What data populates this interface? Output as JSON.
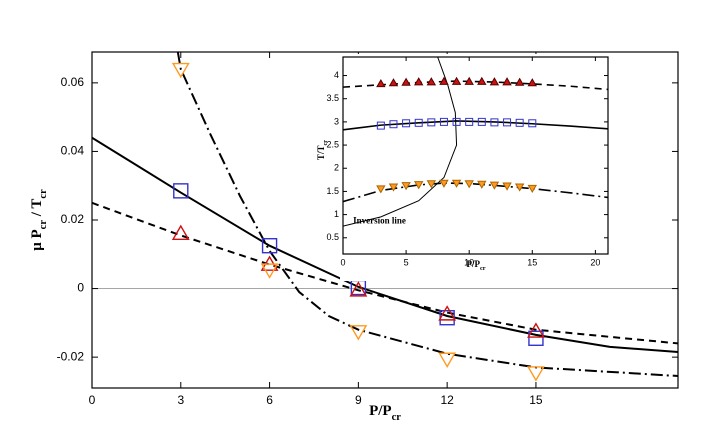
{
  "chart_data": [
    {
      "type": "line",
      "xlabel": [
        {
          "text": "P/P"
        },
        {
          "text": "cr",
          "sub": true
        }
      ],
      "ylabel": [
        {
          "text": "μ P"
        },
        {
          "text": "cr",
          "sub": true
        },
        {
          "text": " / T"
        },
        {
          "text": "cr",
          "sub": true
        }
      ],
      "xlim": [
        0,
        19.8
      ],
      "ylim": [
        -0.029,
        0.069
      ],
      "xticks": [
        0,
        3,
        6,
        9,
        12,
        15
      ],
      "yticks": [
        -0.02,
        0,
        0.02,
        0.04,
        0.06
      ],
      "zero_line": true,
      "series": [
        {
          "style": "solid",
          "color": "#000000",
          "x": [
            0,
            3,
            6,
            9,
            12,
            15,
            17.5,
            19.8
          ],
          "values": [
            0.044,
            0.028,
            0.0125,
            0.0005,
            -0.008,
            -0.0135,
            -0.017,
            -0.0185
          ]
        },
        {
          "style": "dashed",
          "color": "#000000",
          "x": [
            0,
            3,
            6,
            9,
            12,
            15,
            19.8
          ],
          "values": [
            0.025,
            0.0155,
            0.007,
            -0.0005,
            -0.007,
            -0.012,
            -0.016
          ]
        },
        {
          "style": "dashdot",
          "color": "#000000",
          "x": [
            2.9,
            3,
            4,
            5,
            6,
            7,
            8,
            9,
            12,
            15,
            19.8
          ],
          "values": [
            0.069,
            0.064,
            0.045,
            0.027,
            0.011,
            -0.001,
            -0.008,
            -0.012,
            -0.019,
            -0.023,
            -0.0255
          ]
        },
        {
          "marker": "square",
          "color": "#3333cc",
          "x": [
            3,
            6,
            9,
            12,
            15
          ],
          "values": [
            0.0285,
            0.0125,
            0.0003,
            -0.0085,
            -0.0145
          ]
        },
        {
          "marker": "triangle-up",
          "color": "#cc1111",
          "x": [
            3,
            6,
            9,
            12,
            15
          ],
          "values": [
            0.016,
            0.007,
            -0.0005,
            -0.0075,
            -0.0125
          ]
        },
        {
          "marker": "triangle-down",
          "color": "#ff9922",
          "x": [
            3,
            6,
            9,
            12,
            15
          ],
          "values": [
            0.064,
            0.0055,
            -0.0125,
            -0.0205,
            -0.0245
          ]
        }
      ]
    },
    {
      "type": "line",
      "xlabel": [
        {
          "text": "P/P"
        },
        {
          "text": "cr",
          "sub": true
        }
      ],
      "ylabel": [
        {
          "text": "T/T"
        },
        {
          "text": "cr",
          "sub": true
        }
      ],
      "xlim": [
        0,
        21
      ],
      "ylim": [
        0.15,
        4.4
      ],
      "xticks": [
        0,
        5,
        10,
        15,
        20
      ],
      "yticks": [
        0.5,
        1,
        1.5,
        2,
        2.5,
        3,
        3.5,
        4
      ],
      "annotation": "Inversion line",
      "annotation_at": [
        0.8,
        0.85
      ],
      "series": [
        {
          "style": "dashed",
          "color": "#000000",
          "x": [
            0,
            3,
            6,
            9,
            12,
            15,
            18,
            21
          ],
          "values": [
            3.75,
            3.8,
            3.85,
            3.88,
            3.86,
            3.82,
            3.77,
            3.7
          ]
        },
        {
          "style": "solid",
          "color": "#000000",
          "x": [
            0,
            3,
            6,
            9,
            12,
            15,
            18,
            21
          ],
          "values": [
            2.83,
            2.93,
            2.98,
            3.02,
            3.0,
            2.96,
            2.91,
            2.85
          ]
        },
        {
          "style": "dashdot",
          "color": "#000000",
          "x": [
            0,
            3,
            6,
            8,
            10,
            12,
            15,
            18,
            21
          ],
          "values": [
            1.28,
            1.52,
            1.64,
            1.68,
            1.67,
            1.63,
            1.56,
            1.47,
            1.37
          ]
        },
        {
          "style": "thin",
          "color": "#000000",
          "x": [
            0,
            3,
            6,
            8,
            9,
            8.9,
            8.3,
            7.5
          ],
          "values": [
            0.75,
            0.95,
            1.3,
            1.8,
            2.5,
            3.2,
            3.8,
            4.4
          ]
        },
        {
          "marker": "triangle-up",
          "fill": "#cc1111",
          "color": "#550000",
          "x": [
            3,
            4,
            5,
            6,
            7,
            8,
            9,
            10,
            11,
            12,
            13,
            14,
            15
          ],
          "values": [
            3.82,
            3.84,
            3.85,
            3.86,
            3.86,
            3.87,
            3.87,
            3.87,
            3.87,
            3.86,
            3.86,
            3.85,
            3.84
          ]
        },
        {
          "marker": "square",
          "color": "#3333cc",
          "x": [
            3,
            4,
            5,
            6,
            7,
            8,
            9,
            10,
            11,
            12,
            13,
            14,
            15
          ],
          "values": [
            2.92,
            2.95,
            2.97,
            2.98,
            2.99,
            3.0,
            3.0,
            3.0,
            3.0,
            2.99,
            2.99,
            2.98,
            2.97
          ]
        },
        {
          "marker": "triangle-down",
          "fill": "#ff9922",
          "color": "#aa6600",
          "x": [
            3,
            4,
            5,
            6,
            7,
            8,
            9,
            10,
            11,
            12,
            13,
            14,
            15
          ],
          "values": [
            1.56,
            1.6,
            1.63,
            1.65,
            1.67,
            1.68,
            1.68,
            1.67,
            1.66,
            1.64,
            1.62,
            1.6,
            1.57
          ]
        }
      ]
    }
  ]
}
